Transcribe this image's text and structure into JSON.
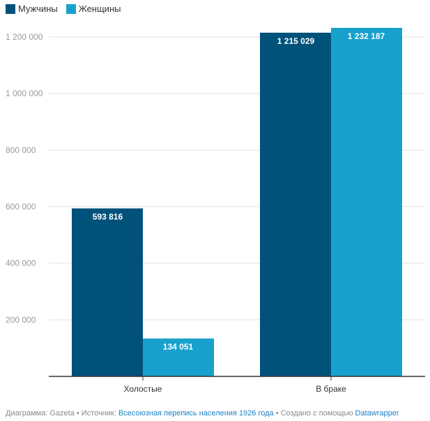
{
  "chart_data": {
    "type": "bar",
    "categories": [
      "Холостые",
      "В браке"
    ],
    "series": [
      {
        "name": "Мужчины",
        "color": "#01527a",
        "values": [
          593816,
          1215029
        ],
        "labels": [
          "593 816",
          "1 215 029"
        ]
      },
      {
        "name": "Женщины",
        "color": "#18a1cd",
        "values": [
          134051,
          1232187
        ],
        "labels": [
          "134 051",
          "1 232 187"
        ]
      }
    ],
    "ylim": [
      0,
      1200000
    ],
    "yticks": [
      200000,
      400000,
      600000,
      800000,
      1000000,
      1200000
    ],
    "ytick_labels": [
      "200 000",
      "400 000",
      "600 000",
      "800 000",
      "1 000 000",
      "1 200 000"
    ],
    "grid": true,
    "legend": "top-left"
  },
  "footer": {
    "prefix": "Диаграмма: Gazeta • Источник: ",
    "source_link": "Всесоюзная перепись населения 1926 года",
    "middle": " • Создано с помощью ",
    "tool_link": "Datawrapper"
  }
}
